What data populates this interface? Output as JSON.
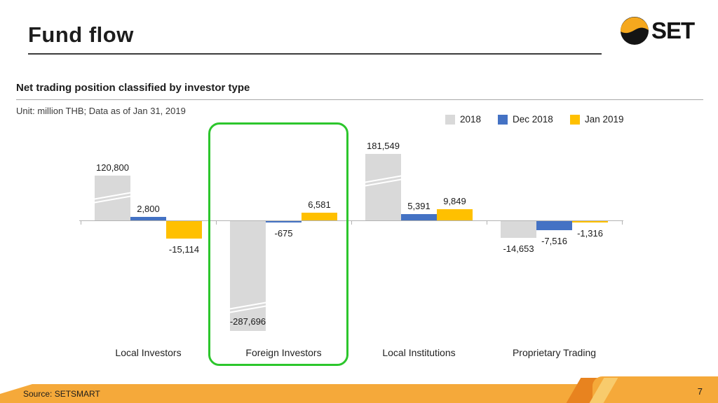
{
  "slide": {
    "title": "Fund flow",
    "logo_text": "SET",
    "chart_title": "Net trading position classified by investor type",
    "unit_note": "Unit: million THB; Data as of Jan 31, 2019",
    "source": "Source: SETSMART",
    "page_number": "7"
  },
  "colors": {
    "series_2018": "#d9d9d9",
    "series_dec2018": "#4472c4",
    "series_jan2019": "#ffc000",
    "highlight_green": "#2cc62c",
    "footer_orange": "#f5a93a",
    "footer_dark_slash": "#e8831f",
    "footer_light_slash": "#f8cb6c",
    "logo_orange": "#f5a81e",
    "logo_black": "#141414"
  },
  "chart_data": {
    "type": "bar",
    "title": "Net trading position classified by investor type",
    "unit": "million THB",
    "as_of": "Jan 31, 2019",
    "categories": [
      "Local Investors",
      "Foreign Investors",
      "Local Institutions",
      "Proprietary Trading"
    ],
    "series": [
      {
        "name": "2018",
        "color": "#d9d9d9",
        "values": [
          120800,
          -287696,
          181549,
          -14653
        ]
      },
      {
        "name": "Dec 2018",
        "color": "#4472c4",
        "values": [
          2800,
          -675,
          5391,
          -7516
        ]
      },
      {
        "name": "Jan 2019",
        "color": "#ffc000",
        "values": [
          -15114,
          6581,
          9849,
          -1316
        ]
      }
    ],
    "data_labels": [
      "120,800",
      "2,800",
      "-15,114",
      "-287,696",
      "-675",
      "6,581",
      "181,549",
      "5,391",
      "9,849",
      "-14,653",
      "-7,516",
      "-1,316"
    ],
    "axis_breaks_on_values": [
      120800,
      -287696,
      181549
    ],
    "highlighted_category": "Foreign Investors",
    "legend_position": "top-right",
    "grid": false
  }
}
